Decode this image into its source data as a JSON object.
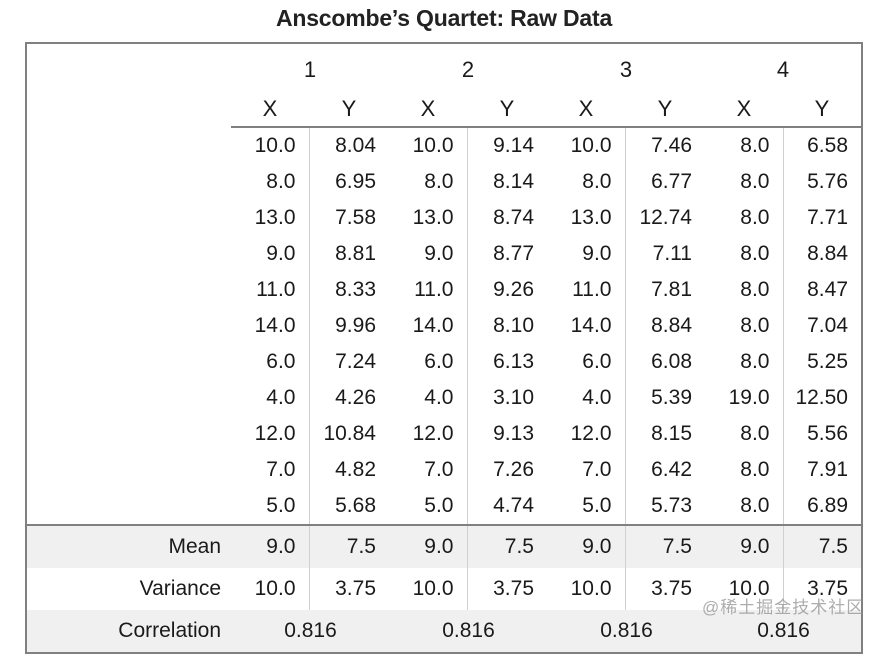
{
  "title": "Anscombe’s Quartet: Raw Data",
  "watermark": "@稀土掘金技术社区",
  "colors": {
    "border": "#808080",
    "inner_divider": "#d0d0d0",
    "stripe_bg": "#f0f0f0",
    "text": "#1a1a1a",
    "watermark": "#919191"
  },
  "table": {
    "group_headers": [
      "1",
      "2",
      "3",
      "4"
    ],
    "axis_headers": [
      "X",
      "Y"
    ],
    "rows": [
      [
        "10.0",
        "8.04",
        "10.0",
        "9.14",
        "10.0",
        "7.46",
        "8.0",
        "6.58"
      ],
      [
        "8.0",
        "6.95",
        "8.0",
        "8.14",
        "8.0",
        "6.77",
        "8.0",
        "5.76"
      ],
      [
        "13.0",
        "7.58",
        "13.0",
        "8.74",
        "13.0",
        "12.74",
        "8.0",
        "7.71"
      ],
      [
        "9.0",
        "8.81",
        "9.0",
        "8.77",
        "9.0",
        "7.11",
        "8.0",
        "8.84"
      ],
      [
        "11.0",
        "8.33",
        "11.0",
        "9.26",
        "11.0",
        "7.81",
        "8.0",
        "8.47"
      ],
      [
        "14.0",
        "9.96",
        "14.0",
        "8.10",
        "14.0",
        "8.84",
        "8.0",
        "7.04"
      ],
      [
        "6.0",
        "7.24",
        "6.0",
        "6.13",
        "6.0",
        "6.08",
        "8.0",
        "5.25"
      ],
      [
        "4.0",
        "4.26",
        "4.0",
        "3.10",
        "4.0",
        "5.39",
        "19.0",
        "12.50"
      ],
      [
        "12.0",
        "10.84",
        "12.0",
        "9.13",
        "12.0",
        "8.15",
        "8.0",
        "5.56"
      ],
      [
        "7.0",
        "4.82",
        "7.0",
        "7.26",
        "7.0",
        "6.42",
        "8.0",
        "7.91"
      ],
      [
        "5.0",
        "5.68",
        "5.0",
        "4.74",
        "5.0",
        "5.73",
        "8.0",
        "6.89"
      ]
    ],
    "summary": [
      {
        "label": "Mean",
        "values": [
          "9.0",
          "7.5",
          "9.0",
          "7.5",
          "9.0",
          "7.5",
          "9.0",
          "7.5"
        ],
        "merged": false,
        "stripe": true
      },
      {
        "label": "Variance",
        "values": [
          "10.0",
          "3.75",
          "10.0",
          "3.75",
          "10.0",
          "3.75",
          "10.0",
          "3.75"
        ],
        "merged": false,
        "stripe": false
      },
      {
        "label": "Correlation",
        "values": [
          "0.816",
          "0.816",
          "0.816",
          "0.816"
        ],
        "merged": true,
        "stripe": true
      }
    ]
  },
  "chart_data": {
    "type": "table",
    "title": "Anscombe’s Quartet: Raw Data",
    "groups": [
      {
        "name": "1",
        "x": [
          10,
          8,
          13,
          9,
          11,
          14,
          6,
          4,
          12,
          7,
          5
        ],
        "y": [
          8.04,
          6.95,
          7.58,
          8.81,
          8.33,
          9.96,
          7.24,
          4.26,
          10.84,
          4.82,
          5.68
        ],
        "mean_x": 9.0,
        "mean_y": 7.5,
        "variance_x": 10.0,
        "variance_y": 3.75,
        "correlation": 0.816
      },
      {
        "name": "2",
        "x": [
          10,
          8,
          13,
          9,
          11,
          14,
          6,
          4,
          12,
          7,
          5
        ],
        "y": [
          9.14,
          8.14,
          8.74,
          8.77,
          9.26,
          8.1,
          6.13,
          3.1,
          9.13,
          7.26,
          4.74
        ],
        "mean_x": 9.0,
        "mean_y": 7.5,
        "variance_x": 10.0,
        "variance_y": 3.75,
        "correlation": 0.816
      },
      {
        "name": "3",
        "x": [
          10,
          8,
          13,
          9,
          11,
          14,
          6,
          4,
          12,
          7,
          5
        ],
        "y": [
          7.46,
          6.77,
          12.74,
          7.11,
          7.81,
          8.84,
          6.08,
          5.39,
          8.15,
          6.42,
          5.73
        ],
        "mean_x": 9.0,
        "mean_y": 7.5,
        "variance_x": 10.0,
        "variance_y": 3.75,
        "correlation": 0.816
      },
      {
        "name": "4",
        "x": [
          8,
          8,
          8,
          8,
          8,
          8,
          8,
          19,
          8,
          8,
          8
        ],
        "y": [
          6.58,
          5.76,
          7.71,
          8.84,
          8.47,
          7.04,
          5.25,
          12.5,
          5.56,
          7.91,
          6.89
        ],
        "mean_x": 9.0,
        "mean_y": 7.5,
        "variance_x": 10.0,
        "variance_y": 3.75,
        "correlation": 0.816
      }
    ],
    "summary_labels": [
      "Mean",
      "Variance",
      "Correlation"
    ]
  }
}
